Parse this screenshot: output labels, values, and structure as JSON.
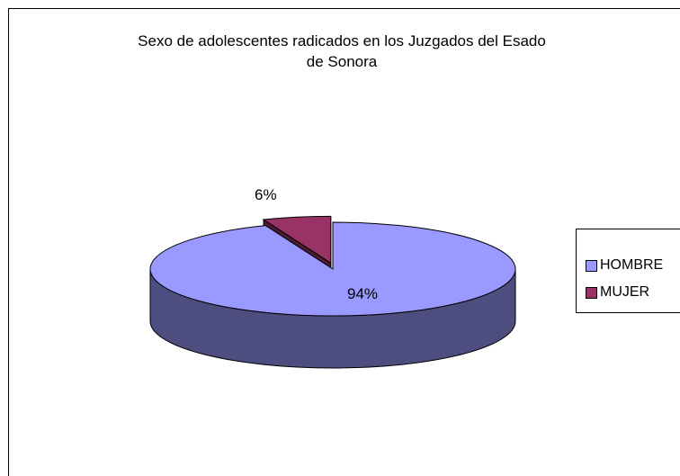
{
  "chart_data": {
    "type": "pie",
    "title": "Sexo de adolescentes radicados en los Juzgados del Esado de Sonora",
    "categories": [
      "HOMBRE",
      "MUJER"
    ],
    "values": [
      94,
      6
    ],
    "labels": [
      "94%",
      "6%"
    ],
    "colors": [
      "#9999ff",
      "#993366"
    ],
    "side_colors": [
      "#4d4d80",
      "#4d1a33"
    ],
    "legend_position": "right",
    "three_d": true
  }
}
